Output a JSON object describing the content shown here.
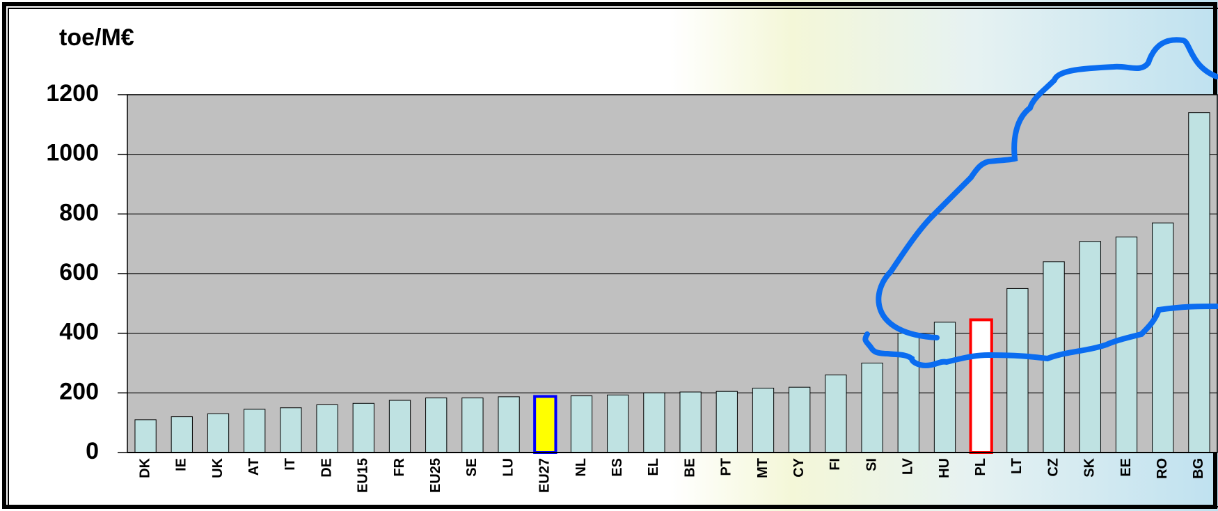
{
  "chart_data": {
    "type": "bar",
    "y_label": "toe/M€",
    "categories": [
      "DK",
      "IE",
      "UK",
      "AT",
      "IT",
      "DE",
      "EU15",
      "FR",
      "EU25",
      "SE",
      "LU",
      "EU27",
      "NL",
      "ES",
      "EL",
      "BE",
      "PT",
      "MT",
      "CY",
      "FI",
      "SI",
      "LV",
      "HU",
      "PL",
      "LT",
      "CZ",
      "SK",
      "EE",
      "RO",
      "BG"
    ],
    "values": [
      110,
      120,
      130,
      145,
      150,
      160,
      165,
      175,
      183,
      183,
      187,
      188,
      190,
      193,
      200,
      203,
      205,
      216,
      219,
      260,
      300,
      400,
      437,
      445,
      550,
      640,
      708,
      723,
      770,
      1140
    ],
    "color": "#bfe2e2",
    "highlights": [
      {
        "index": 11,
        "color": "#ffff00",
        "edge": "#0000ff"
      },
      {
        "index": 23,
        "color": "#ffffff",
        "edge": "#ff0000"
      }
    ],
    "ylim": [
      0,
      1200
    ],
    "yticks": [
      0,
      200,
      400,
      600,
      800,
      1000,
      1200
    ],
    "grid": true
  }
}
